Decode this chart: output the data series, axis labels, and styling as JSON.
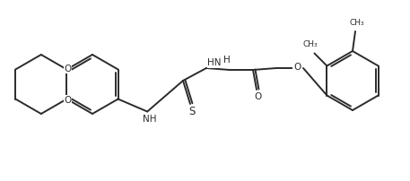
{
  "bg_color": "#ffffff",
  "line_color": "#2b2b2b",
  "line_width": 1.4,
  "font_size": 7.5,
  "figsize": [
    4.57,
    2.02
  ],
  "dpi": 100,
  "xlim": [
    0,
    457
  ],
  "ylim": [
    0,
    202
  ]
}
